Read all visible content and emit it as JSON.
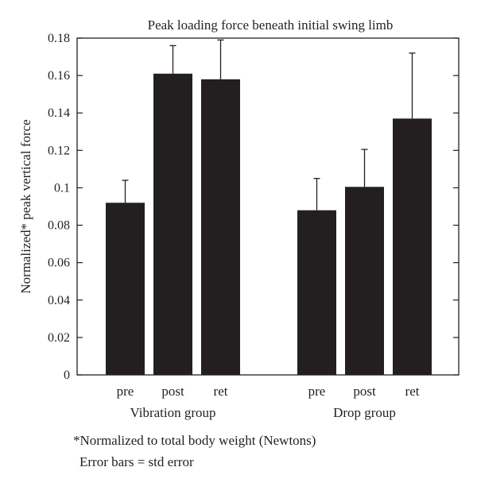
{
  "chart_data": {
    "type": "bar",
    "title": "Peak loading force beneath initial swing limb",
    "ylabel": "Normalized* peak vertical force",
    "xlabel": "",
    "ylim": [
      0,
      0.18
    ],
    "yticks": [
      "0",
      "0.02",
      "0.04",
      "0.06",
      "0.08",
      "0.1",
      "0.12",
      "0.14",
      "0.16",
      "0.18"
    ],
    "grid": false,
    "bar_color": "#231f20",
    "groups": [
      {
        "name": "Vibration group",
        "categories": [
          "pre",
          "post",
          "ret"
        ],
        "values": [
          0.092,
          0.161,
          0.158
        ],
        "errors": [
          0.012,
          0.015,
          0.021
        ]
      },
      {
        "name": "Drop group",
        "categories": [
          "pre",
          "post",
          "ret"
        ],
        "values": [
          0.088,
          0.1005,
          0.137
        ],
        "errors": [
          0.017,
          0.02,
          0.035
        ]
      }
    ]
  },
  "notes": {
    "line1": "*Normalized to total body weight (Newtons)",
    "line2": "Error bars = std error"
  }
}
